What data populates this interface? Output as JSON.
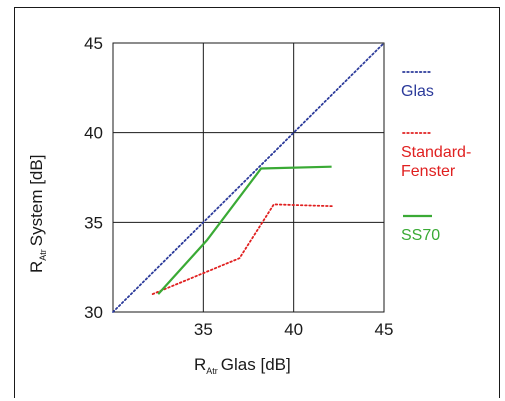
{
  "chart_data": {
    "type": "line",
    "xlabel": {
      "main": "R",
      "sub": "Atr",
      "rest": "Glas [dB]"
    },
    "ylabel": {
      "main": "R",
      "sub": "Atr",
      "rest": "System [dB]"
    },
    "xlim": [
      30,
      45
    ],
    "ylim": [
      30,
      45
    ],
    "xticks": [
      "35",
      "40",
      "45"
    ],
    "yticks": [
      "30",
      "35",
      "40",
      "45"
    ],
    "grid": true,
    "legend_position": "right",
    "series": [
      {
        "name": "Glas",
        "style": "dotted",
        "color": "#2b3a9a",
        "points": [
          [
            30,
            30
          ],
          [
            45,
            45
          ]
        ]
      },
      {
        "name": "Standard-\nFenster",
        "style": "dotted",
        "color": "#e02020",
        "points": [
          [
            32.2,
            31
          ],
          [
            37,
            33
          ],
          [
            38.9,
            36
          ],
          [
            42.2,
            35.9
          ]
        ]
      },
      {
        "name": "SS70",
        "style": "solid",
        "color": "#3aaa35",
        "points": [
          [
            32.5,
            31
          ],
          [
            35.2,
            34
          ],
          [
            38.2,
            38
          ],
          [
            42.1,
            38.1
          ]
        ]
      }
    ]
  }
}
